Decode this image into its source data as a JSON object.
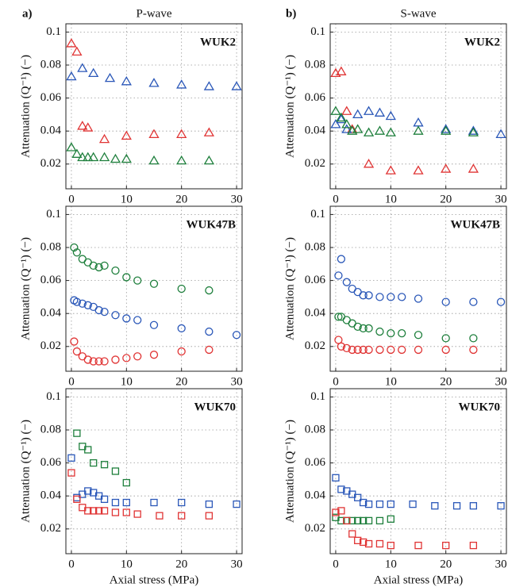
{
  "columns": [
    {
      "label": "a)",
      "title": "P-wave"
    },
    {
      "label": "b)",
      "title": "S-wave"
    }
  ],
  "chart_data": [
    {
      "type": "scatter",
      "title": "WUK2",
      "ylabel": "Attenuation (Q⁻¹) (−)",
      "xlim": [
        -1,
        31
      ],
      "ylim": [
        0.005,
        0.105
      ],
      "xticks": [
        0,
        10,
        20,
        30
      ],
      "yticks": [
        0.02,
        0.04,
        0.06,
        0.08,
        0.1
      ],
      "grid": true,
      "marker": "triangle",
      "series": [
        {
          "color": "#e03434",
          "x": [
            0,
            1,
            2,
            3,
            6,
            10,
            15,
            20,
            25
          ],
          "values": [
            0.093,
            0.088,
            0.043,
            0.042,
            0.035,
            0.037,
            0.038,
            0.038,
            0.039
          ]
        },
        {
          "color": "#2a57b8",
          "x": [
            0,
            2,
            4,
            7,
            10,
            15,
            20,
            25,
            30
          ],
          "values": [
            0.073,
            0.078,
            0.075,
            0.072,
            0.07,
            0.069,
            0.068,
            0.067,
            0.067
          ]
        },
        {
          "color": "#1e7f3c",
          "x": [
            0,
            1,
            2,
            3,
            4,
            6,
            8,
            10,
            15,
            20,
            25
          ],
          "values": [
            0.03,
            0.026,
            0.024,
            0.024,
            0.024,
            0.024,
            0.023,
            0.023,
            0.022,
            0.022,
            0.022
          ]
        }
      ]
    },
    {
      "type": "scatter",
      "title": "WUK2",
      "ylabel": "Attenuation (Q⁻¹) (−)",
      "xlim": [
        -1,
        31
      ],
      "ylim": [
        0.005,
        0.105
      ],
      "xticks": [
        0,
        10,
        20,
        30
      ],
      "yticks": [
        0.02,
        0.04,
        0.06,
        0.08,
        0.1
      ],
      "grid": true,
      "marker": "triangle",
      "series": [
        {
          "color": "#e03434",
          "x": [
            0,
            1,
            2,
            3,
            6,
            10,
            15,
            20,
            25
          ],
          "values": [
            0.075,
            0.076,
            0.052,
            0.041,
            0.02,
            0.016,
            0.016,
            0.017,
            0.017
          ]
        },
        {
          "color": "#2a57b8",
          "x": [
            0,
            1,
            2,
            4,
            6,
            8,
            10,
            15,
            20,
            25,
            30
          ],
          "values": [
            0.044,
            0.047,
            0.041,
            0.05,
            0.052,
            0.051,
            0.049,
            0.045,
            0.041,
            0.04,
            0.038
          ]
        },
        {
          "color": "#1e7f3c",
          "x": [
            0,
            1,
            2,
            3,
            4,
            6,
            8,
            10,
            15,
            20,
            25
          ],
          "values": [
            0.052,
            0.048,
            0.044,
            0.04,
            0.041,
            0.039,
            0.04,
            0.039,
            0.04,
            0.04,
            0.039
          ]
        }
      ]
    },
    {
      "type": "scatter",
      "title": "WUK47B",
      "ylabel": "Attenuation (Q⁻¹) (−)",
      "xlim": [
        -1,
        31
      ],
      "ylim": [
        0.005,
        0.105
      ],
      "xticks": [
        0,
        10,
        20,
        30
      ],
      "yticks": [
        0.02,
        0.04,
        0.06,
        0.08,
        0.1
      ],
      "grid": true,
      "marker": "circle",
      "series": [
        {
          "color": "#1e7f3c",
          "x": [
            0.5,
            1,
            2,
            3,
            4,
            5,
            6,
            8,
            10,
            12,
            15,
            20,
            25
          ],
          "values": [
            0.08,
            0.077,
            0.073,
            0.071,
            0.069,
            0.068,
            0.069,
            0.066,
            0.062,
            0.06,
            0.058,
            0.055,
            0.054
          ]
        },
        {
          "color": "#2a57b8",
          "x": [
            0.5,
            1,
            2,
            3,
            4,
            5,
            6,
            8,
            10,
            12,
            15,
            20,
            25,
            30
          ],
          "values": [
            0.048,
            0.047,
            0.046,
            0.045,
            0.044,
            0.042,
            0.041,
            0.039,
            0.037,
            0.036,
            0.033,
            0.031,
            0.029,
            0.027
          ]
        },
        {
          "color": "#e03434",
          "x": [
            0.5,
            1,
            2,
            3,
            4,
            5,
            6,
            8,
            10,
            12,
            15,
            20,
            25
          ],
          "values": [
            0.023,
            0.017,
            0.014,
            0.012,
            0.011,
            0.011,
            0.011,
            0.012,
            0.013,
            0.014,
            0.015,
            0.017,
            0.018
          ]
        }
      ]
    },
    {
      "type": "scatter",
      "title": "WUK47B",
      "ylabel": "Attenuation (Q⁻¹) (−)",
      "xlim": [
        -1,
        31
      ],
      "ylim": [
        0.005,
        0.105
      ],
      "xticks": [
        0,
        10,
        20,
        30
      ],
      "yticks": [
        0.02,
        0.04,
        0.06,
        0.08,
        0.1
      ],
      "grid": true,
      "marker": "circle",
      "series": [
        {
          "color": "#2a57b8",
          "x": [
            0.5,
            1,
            2,
            3,
            4,
            5,
            6,
            8,
            10,
            12,
            15,
            20,
            25,
            30
          ],
          "values": [
            0.063,
            0.073,
            0.059,
            0.055,
            0.053,
            0.051,
            0.051,
            0.05,
            0.05,
            0.05,
            0.049,
            0.047,
            0.047,
            0.047
          ]
        },
        {
          "color": "#1e7f3c",
          "x": [
            0.5,
            1,
            2,
            3,
            4,
            5,
            6,
            8,
            10,
            12,
            15,
            20,
            25
          ],
          "values": [
            0.038,
            0.038,
            0.036,
            0.034,
            0.032,
            0.031,
            0.031,
            0.029,
            0.028,
            0.028,
            0.027,
            0.025,
            0.025
          ]
        },
        {
          "color": "#e03434",
          "x": [
            0.5,
            1,
            2,
            3,
            4,
            5,
            6,
            8,
            10,
            12,
            15,
            20,
            25
          ],
          "values": [
            0.024,
            0.02,
            0.019,
            0.018,
            0.018,
            0.018,
            0.018,
            0.018,
            0.018,
            0.018,
            0.018,
            0.018,
            0.018
          ]
        }
      ]
    },
    {
      "type": "scatter",
      "title": "WUK70",
      "ylabel": "Attenuation (Q⁻¹) (−)",
      "xlabel": "Axial stress (MPa)",
      "xlim": [
        -1,
        31
      ],
      "ylim": [
        0.005,
        0.105
      ],
      "xticks": [
        0,
        10,
        20,
        30
      ],
      "yticks": [
        0.02,
        0.04,
        0.06,
        0.08,
        0.1
      ],
      "grid": true,
      "marker": "square",
      "series": [
        {
          "color": "#1e7f3c",
          "x": [
            1,
            2,
            3,
            4,
            6,
            8,
            10
          ],
          "values": [
            0.078,
            0.07,
            0.068,
            0.06,
            0.059,
            0.055,
            0.048
          ]
        },
        {
          "color": "#2a57b8",
          "x": [
            0,
            1,
            2,
            3,
            4,
            5,
            6,
            8,
            10,
            15,
            20,
            25,
            30
          ],
          "values": [
            0.063,
            0.039,
            0.041,
            0.043,
            0.042,
            0.04,
            0.038,
            0.036,
            0.036,
            0.036,
            0.036,
            0.035,
            0.035
          ]
        },
        {
          "color": "#e03434",
          "x": [
            0,
            1,
            2,
            3,
            4,
            5,
            6,
            8,
            10,
            12,
            16,
            20,
            25
          ],
          "values": [
            0.054,
            0.038,
            0.033,
            0.031,
            0.031,
            0.031,
            0.031,
            0.03,
            0.03,
            0.029,
            0.028,
            0.028,
            0.028
          ]
        }
      ]
    },
    {
      "type": "scatter",
      "title": "WUK70",
      "ylabel": "Attenuation (Q⁻¹) (−)",
      "xlabel": "Axial stress (MPa)",
      "xlim": [
        -1,
        31
      ],
      "ylim": [
        0.005,
        0.105
      ],
      "xticks": [
        0,
        10,
        20,
        30
      ],
      "yticks": [
        0.02,
        0.04,
        0.06,
        0.08,
        0.1
      ],
      "grid": true,
      "marker": "square",
      "series": [
        {
          "color": "#2a57b8",
          "x": [
            0,
            1,
            2,
            3,
            4,
            5,
            6,
            8,
            10,
            14,
            18,
            22,
            25,
            30
          ],
          "values": [
            0.051,
            0.044,
            0.043,
            0.041,
            0.039,
            0.036,
            0.035,
            0.035,
            0.035,
            0.035,
            0.034,
            0.034,
            0.034,
            0.034
          ]
        },
        {
          "color": "#1e7f3c",
          "x": [
            0,
            1,
            2,
            3,
            4,
            5,
            6,
            8,
            10
          ],
          "values": [
            0.027,
            0.025,
            0.025,
            0.025,
            0.025,
            0.025,
            0.025,
            0.025,
            0.026
          ]
        },
        {
          "color": "#e03434",
          "x": [
            0,
            1,
            2,
            3,
            4,
            5,
            6,
            8,
            10,
            15,
            20,
            25
          ],
          "values": [
            0.03,
            0.031,
            0.025,
            0.017,
            0.013,
            0.012,
            0.011,
            0.011,
            0.01,
            0.01,
            0.01,
            0.01
          ]
        }
      ]
    }
  ]
}
